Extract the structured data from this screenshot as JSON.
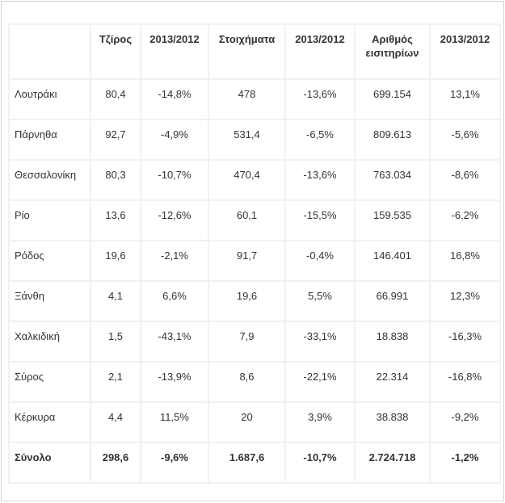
{
  "table": {
    "headers": [
      "",
      "Τζίρος",
      "2013/2012",
      "Στοιχήματα",
      "2013/2012",
      "Αριθμός εισιτηρίων",
      "2013/2012"
    ],
    "rows": [
      [
        "Λουτράκι",
        "80,4",
        "-14,8%",
        "478",
        "-13,6%",
        "699.154",
        "13,1%"
      ],
      [
        "Πάρνηθα",
        "92,7",
        "-4,9%",
        "531,4",
        "-6,5%",
        "809.613",
        "-5,6%"
      ],
      [
        "Θεσσαλονίκη",
        "80,3",
        "-10,7%",
        "470,4",
        "-13,6%",
        "763.034",
        "-8,6%"
      ],
      [
        "Ρίο",
        "13,6",
        "-12,6%",
        "60,1",
        "-15,5%",
        "159.535",
        "-6,2%"
      ],
      [
        "Ρόδος",
        "19,6",
        "-2,1%",
        "91,7",
        "-0,4%",
        "146.401",
        "16,8%"
      ],
      [
        "Ξάνθη",
        "4,1",
        "6,6%",
        "19,6",
        "5,5%",
        "66.991",
        "12,3%"
      ],
      [
        "Χαλκιδική",
        "1,5",
        "-43,1%",
        "7,9",
        "-33,1%",
        "18.838",
        "-16,3%"
      ],
      [
        "Σύρος",
        "2,1",
        "-13,9%",
        "8,6",
        "-22,1%",
        "22.314",
        "-16,8%"
      ],
      [
        "Κέρκυρα",
        "4,4",
        "11,5%",
        "20",
        "3,9%",
        "38.838",
        "-9,2%"
      ]
    ],
    "total": [
      "Σύνολο",
      "298,6",
      "-9,6%",
      "1.687,6",
      "-10,7%",
      "2.724.718",
      "-1,2%"
    ]
  }
}
